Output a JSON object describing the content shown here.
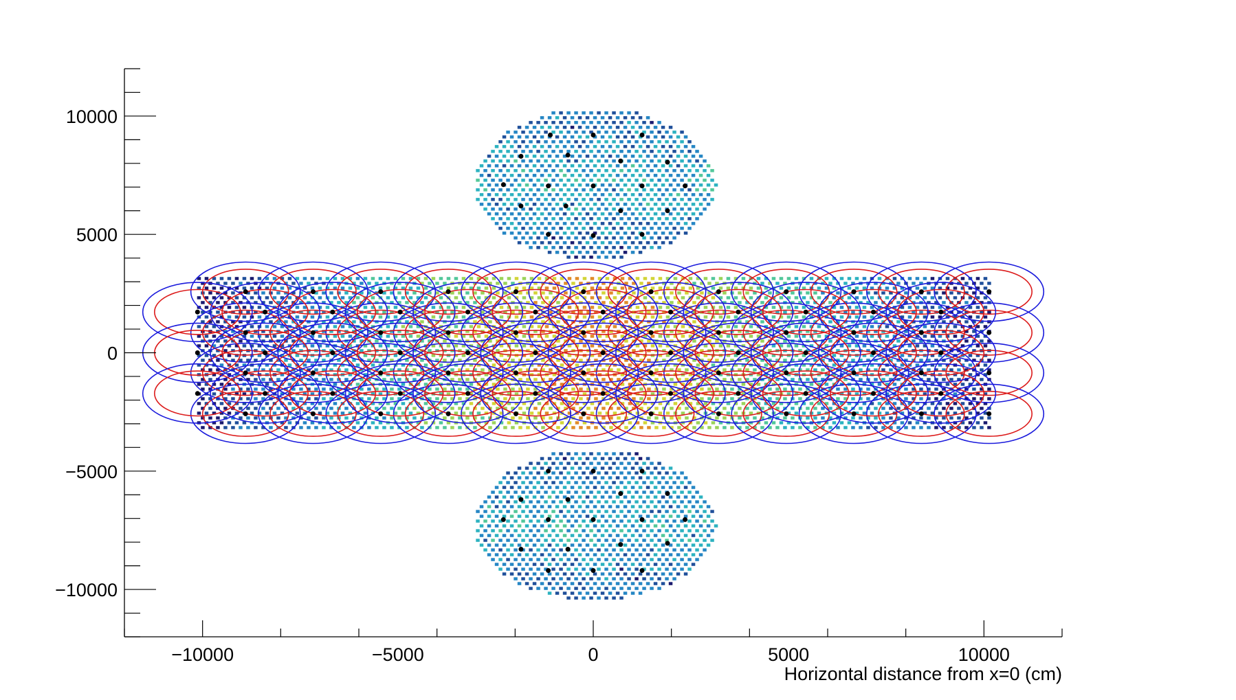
{
  "chart_data": {
    "type": "scatter",
    "title": "",
    "xlabel": "Horizontal distance from x=0 (cm)",
    "ylabel": "",
    "xlim": [
      -12000,
      12000
    ],
    "ylim": [
      -12000,
      12000
    ],
    "x_ticks": [
      {
        "value": -10000,
        "label": "−10000"
      },
      {
        "value": -5000,
        "label": "−5000"
      },
      {
        "value": 0,
        "label": "0"
      },
      {
        "value": 5000,
        "label": "5000"
      },
      {
        "value": 10000,
        "label": "10000"
      }
    ],
    "y_ticks": [
      {
        "value": 10000,
        "label": "10000"
      },
      {
        "value": 5000,
        "label": "5000"
      },
      {
        "value": 0,
        "label": "0"
      },
      {
        "value": -5000,
        "label": "−5000"
      },
      {
        "value": -10000,
        "label": "−10000"
      }
    ],
    "grid": false,
    "legend": "none",
    "colors": {
      "cell_palette": [
        "#1a1a6e",
        "#1f4f9a",
        "#2586c4",
        "#2cb2c0",
        "#52c79a",
        "#9bd35a",
        "#d2d538",
        "#e08c2a",
        "#cc2020"
      ],
      "outer_ring": "#1a1adc",
      "inner_ring": "#dc1a1a",
      "station_point": "#000000"
    },
    "regions": [
      {
        "name": "upper-disk",
        "shape": "ellipse",
        "center": [
          0,
          7200
        ],
        "radius": [
          3100,
          3200
        ]
      },
      {
        "name": "central-strip",
        "shape": "rectangle",
        "x_range": [
          -10000,
          10000
        ],
        "y_range": [
          -3200,
          3200
        ]
      },
      {
        "name": "lower-disk",
        "shape": "ellipse",
        "center": [
          0,
          -7200
        ],
        "radius": [
          3100,
          3200
        ]
      }
    ],
    "disk_station_points": [
      [
        -1100,
        9200
      ],
      [
        0,
        9200
      ],
      [
        1250,
        9200
      ],
      [
        -1850,
        8300
      ],
      [
        -650,
        8350
      ],
      [
        700,
        8100
      ],
      [
        1900,
        8050
      ],
      [
        -2300,
        7100
      ],
      [
        -1150,
        7050
      ],
      [
        0,
        7050
      ],
      [
        1250,
        7050
      ],
      [
        2350,
        7050
      ],
      [
        -1850,
        6200
      ],
      [
        -700,
        6200
      ],
      [
        700,
        6000
      ],
      [
        1900,
        6000
      ],
      [
        -1150,
        5000
      ],
      [
        0,
        4950
      ],
      [
        1250,
        5000
      ],
      [
        -1150,
        -5000
      ],
      [
        0,
        -5000
      ],
      [
        1250,
        -5000
      ],
      [
        -1850,
        -6200
      ],
      [
        -650,
        -6200
      ],
      [
        700,
        -5950
      ],
      [
        1900,
        -5950
      ],
      [
        -2300,
        -7050
      ],
      [
        -1150,
        -7050
      ],
      [
        0,
        -7050
      ],
      [
        1250,
        -7050
      ],
      [
        2350,
        -7050
      ],
      [
        -1850,
        -8300
      ],
      [
        -650,
        -8300
      ],
      [
        700,
        -8100
      ],
      [
        1900,
        -8050
      ],
      [
        -1150,
        -9200
      ],
      [
        0,
        -9200
      ],
      [
        1250,
        -9200
      ]
    ],
    "strip_row_a_y": [
      2580,
      850,
      -850,
      -2580
    ],
    "strip_row_a_x": [
      -8900,
      -7170,
      -5440,
      -3710,
      -1980,
      -250,
      1480,
      3210,
      4940,
      6670,
      8400,
      10130
    ],
    "strip_row_b_y": [
      1720,
      0,
      -1720
    ],
    "strip_row_b_x": [
      -10130,
      -8400,
      -6670,
      -4940,
      -3210,
      -1480,
      250,
      1980,
      3710,
      5440,
      7170,
      8900
    ],
    "coverage_ring_radius_outer": [
      1400,
      1250
    ],
    "coverage_ring_radius_inner": [
      1100,
      950
    ]
  }
}
